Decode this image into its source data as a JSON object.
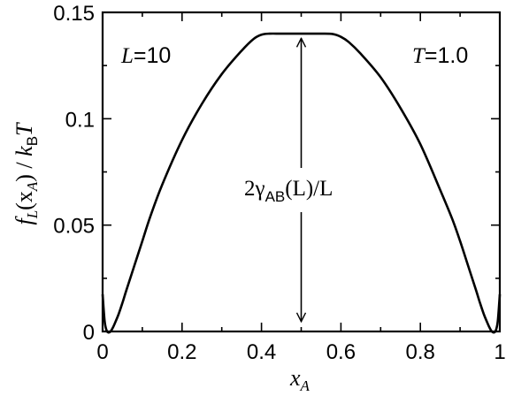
{
  "chart_data": {
    "type": "line",
    "xlabel": {
      "main": "x",
      "sub": "A"
    },
    "ylabel": {
      "f": "f",
      "f_sub": "L",
      "arg_open": "(x",
      "arg_sub": "A",
      "arg_close": ")",
      "slash": " / ",
      "k": "k",
      "k_sub": "B",
      "T": "T"
    },
    "xlim": [
      0,
      1
    ],
    "ylim": [
      0,
      0.15
    ],
    "x_ticks": [
      0,
      0.2,
      0.4,
      0.6,
      0.8,
      1
    ],
    "x_tick_labels": [
      "0",
      "0.2",
      "0.4",
      "0.6",
      "0.8",
      "1"
    ],
    "y_ticks": [
      0,
      0.05,
      0.1,
      0.15
    ],
    "y_tick_labels": [
      "0",
      "0.05",
      "0.1",
      "0.15"
    ],
    "grid": false,
    "legend": "none",
    "annotations": {
      "L_label": {
        "sym": "L",
        "rest": "=10"
      },
      "T_label": {
        "sym": "T",
        "rest": "=1.0"
      },
      "arrow_label": {
        "pre": "2γ",
        "sub": "AB",
        "post": "(L)/L"
      },
      "arrow": {
        "x": 0.5,
        "y_from": 0.003,
        "y_to": 0.1395
      }
    },
    "series": [
      {
        "x": [
          0.0,
          0.005,
          0.01,
          0.015,
          0.02,
          0.025,
          0.03,
          0.04,
          0.05,
          0.06,
          0.08,
          0.1,
          0.12,
          0.15,
          0.2,
          0.25,
          0.3,
          0.35,
          0.38,
          0.4,
          0.42,
          0.45,
          0.5,
          0.55,
          0.58,
          0.6,
          0.62,
          0.65,
          0.7,
          0.75,
          0.8,
          0.85,
          0.88,
          0.9,
          0.92,
          0.94,
          0.95,
          0.96,
          0.97,
          0.975,
          0.98,
          0.985,
          0.99,
          0.995,
          1.0
        ],
        "y": [
          0.0175,
          0.005,
          0.0005,
          -0.0005,
          0.0,
          0.0015,
          0.0035,
          0.008,
          0.0135,
          0.0195,
          0.031,
          0.0425,
          0.054,
          0.069,
          0.09,
          0.107,
          0.121,
          0.132,
          0.1375,
          0.1395,
          0.14,
          0.14,
          0.14,
          0.14,
          0.1398,
          0.1385,
          0.136,
          0.1305,
          0.1195,
          0.105,
          0.088,
          0.0665,
          0.053,
          0.0425,
          0.031,
          0.0195,
          0.0135,
          0.008,
          0.0035,
          0.0015,
          0.0,
          -0.0005,
          0.0005,
          0.005,
          0.0175
        ]
      }
    ]
  }
}
